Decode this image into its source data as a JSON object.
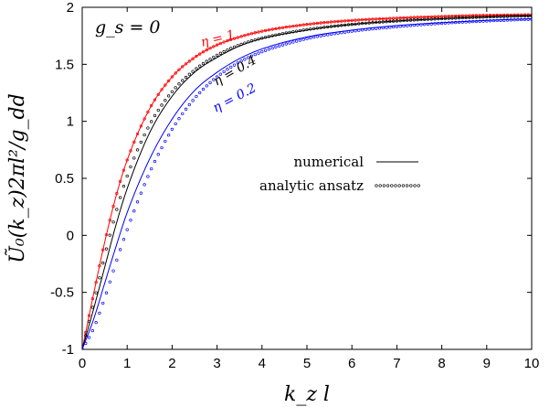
{
  "chart_data": {
    "type": "line",
    "xlabel": "k_z l",
    "ylabel": "Ũ₀(k_z)2πl²/g_dd",
    "xlim": [
      0,
      10
    ],
    "ylim": [
      -1,
      2
    ],
    "xticks": [
      "0",
      "1",
      "2",
      "3",
      "4",
      "5",
      "6",
      "7",
      "8",
      "9",
      "10"
    ],
    "yticks": [
      "-1",
      "-0.5",
      "0",
      "0.5",
      "1",
      "1.5",
      "2"
    ],
    "annotation": "g_s = 0",
    "legend": {
      "placement": "center-right",
      "entries": [
        {
          "label": "numerical",
          "style": "solid"
        },
        {
          "label": "analytic ansatz",
          "style": "dotted"
        }
      ]
    },
    "colors": {
      "eta_1": "#ff0000",
      "eta_0_4": "#000000",
      "eta_0_2": "#0000ff"
    },
    "x": [
      0,
      0.25,
      0.5,
      0.75,
      1,
      1.5,
      2,
      2.5,
      3,
      3.5,
      4,
      5,
      6,
      7,
      8,
      9,
      10
    ],
    "series": [
      {
        "name": "η = 1",
        "color": "#ff0000",
        "numerical": [
          -1.0,
          -0.52,
          -0.06,
          0.34,
          0.66,
          1.11,
          1.39,
          1.56,
          1.67,
          1.74,
          1.79,
          1.85,
          1.885,
          1.905,
          1.92,
          1.93,
          1.935
        ],
        "analytic": [
          -1.0,
          -0.52,
          -0.06,
          0.34,
          0.66,
          1.11,
          1.39,
          1.56,
          1.67,
          1.74,
          1.79,
          1.85,
          1.885,
          1.905,
          1.92,
          1.93,
          1.935
        ]
      },
      {
        "name": "η = 0.4",
        "color": "#000000",
        "numerical": [
          -1.0,
          -0.65,
          -0.28,
          0.09,
          0.41,
          0.9,
          1.22,
          1.43,
          1.56,
          1.66,
          1.725,
          1.8,
          1.85,
          1.88,
          1.9,
          1.915,
          1.925
        ],
        "analytic": [
          -1.0,
          -0.6,
          -0.18,
          0.2,
          0.52,
          0.97,
          1.26,
          1.45,
          1.58,
          1.67,
          1.73,
          1.805,
          1.85,
          1.88,
          1.9,
          1.915,
          1.925
        ]
      },
      {
        "name": "η = 0.2",
        "color": "#0000ff",
        "numerical": [
          -1.0,
          -0.74,
          -0.42,
          -0.1,
          0.2,
          0.67,
          1.02,
          1.27,
          1.43,
          1.55,
          1.635,
          1.74,
          1.8,
          1.84,
          1.865,
          1.885,
          1.9
        ],
        "analytic": [
          -1.0,
          -0.82,
          -0.55,
          -0.24,
          0.05,
          0.55,
          0.93,
          1.2,
          1.39,
          1.52,
          1.61,
          1.725,
          1.79,
          1.83,
          1.86,
          1.88,
          1.895
        ]
      }
    ]
  }
}
